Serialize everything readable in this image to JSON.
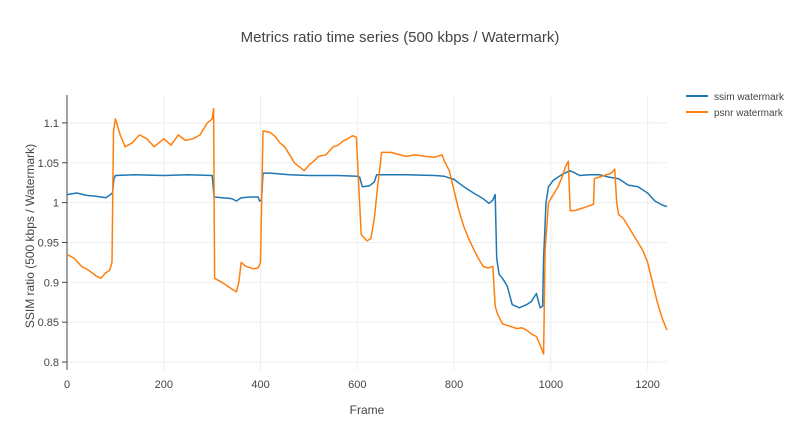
{
  "chart_data": {
    "type": "line",
    "title": "Metrics ratio time series (500 kbps / Watermark)",
    "xlabel": "Frame",
    "ylabel": "SSIM ratio (500 kbps / Watermark)",
    "xlim": [
      0,
      1240
    ],
    "ylim": [
      0.79,
      1.135
    ],
    "x_ticks": [
      0,
      200,
      400,
      600,
      800,
      1000,
      1200
    ],
    "y_ticks": [
      0.8,
      0.85,
      0.9,
      0.95,
      1,
      1.05,
      1.1
    ],
    "y_tick_labels": [
      "0.8",
      "0.85",
      "0.9",
      "0.95",
      "1",
      "1.05",
      "1.1"
    ],
    "grid": true,
    "legend_position": "top-right",
    "series": [
      {
        "name": "ssim watermark",
        "color": "#1f77b4",
        "points": [
          [
            0,
            1.01
          ],
          [
            20,
            1.012
          ],
          [
            40,
            1.009
          ],
          [
            60,
            1.008
          ],
          [
            80,
            1.006
          ],
          [
            90,
            1.01
          ],
          [
            94,
            1.012
          ],
          [
            97,
            1.03
          ],
          [
            100,
            1.034
          ],
          [
            140,
            1.035
          ],
          [
            200,
            1.034
          ],
          [
            250,
            1.035
          ],
          [
            300,
            1.034
          ],
          [
            304,
            1.007
          ],
          [
            340,
            1.005
          ],
          [
            350,
            1.002
          ],
          [
            360,
            1.006
          ],
          [
            380,
            1.007
          ],
          [
            395,
            1.007
          ],
          [
            398,
            1.002
          ],
          [
            402,
            1.003
          ],
          [
            405,
            1.037
          ],
          [
            420,
            1.037
          ],
          [
            460,
            1.035
          ],
          [
            500,
            1.034
          ],
          [
            560,
            1.034
          ],
          [
            600,
            1.033
          ],
          [
            605,
            1.032
          ],
          [
            610,
            1.02
          ],
          [
            625,
            1.021
          ],
          [
            635,
            1.026
          ],
          [
            640,
            1.035
          ],
          [
            700,
            1.035
          ],
          [
            760,
            1.034
          ],
          [
            780,
            1.033
          ],
          [
            800,
            1.029
          ],
          [
            820,
            1.02
          ],
          [
            840,
            1.012
          ],
          [
            860,
            1.005
          ],
          [
            872,
            0.999
          ],
          [
            880,
            1.003
          ],
          [
            885,
            1.01
          ],
          [
            888,
            0.93
          ],
          [
            893,
            0.91
          ],
          [
            900,
            0.905
          ],
          [
            910,
            0.895
          ],
          [
            920,
            0.872
          ],
          [
            935,
            0.868
          ],
          [
            950,
            0.872
          ],
          [
            960,
            0.876
          ],
          [
            970,
            0.886
          ],
          [
            978,
            0.868
          ],
          [
            983,
            0.87
          ],
          [
            985,
            0.93
          ],
          [
            990,
            1.0
          ],
          [
            995,
            1.02
          ],
          [
            1005,
            1.028
          ],
          [
            1015,
            1.032
          ],
          [
            1025,
            1.036
          ],
          [
            1040,
            1.04
          ],
          [
            1060,
            1.034
          ],
          [
            1080,
            1.035
          ],
          [
            1100,
            1.035
          ],
          [
            1120,
            1.032
          ],
          [
            1140,
            1.03
          ],
          [
            1160,
            1.022
          ],
          [
            1180,
            1.02
          ],
          [
            1200,
            1.012
          ],
          [
            1215,
            1.002
          ],
          [
            1230,
            0.997
          ],
          [
            1240,
            0.995
          ]
        ]
      },
      {
        "name": "psnr watermark",
        "color": "#ff7f0e",
        "points": [
          [
            0,
            0.935
          ],
          [
            15,
            0.93
          ],
          [
            30,
            0.92
          ],
          [
            45,
            0.915
          ],
          [
            60,
            0.908
          ],
          [
            70,
            0.905
          ],
          [
            80,
            0.912
          ],
          [
            88,
            0.915
          ],
          [
            93,
            0.925
          ],
          [
            96,
            1.09
          ],
          [
            100,
            1.105
          ],
          [
            110,
            1.085
          ],
          [
            120,
            1.07
          ],
          [
            135,
            1.075
          ],
          [
            150,
            1.085
          ],
          [
            165,
            1.08
          ],
          [
            180,
            1.07
          ],
          [
            200,
            1.08
          ],
          [
            215,
            1.072
          ],
          [
            230,
            1.085
          ],
          [
            245,
            1.078
          ],
          [
            260,
            1.08
          ],
          [
            275,
            1.085
          ],
          [
            290,
            1.1
          ],
          [
            300,
            1.105
          ],
          [
            303,
            1.118
          ],
          [
            305,
            0.905
          ],
          [
            320,
            0.9
          ],
          [
            340,
            0.892
          ],
          [
            350,
            0.888
          ],
          [
            355,
            0.9
          ],
          [
            360,
            0.925
          ],
          [
            370,
            0.92
          ],
          [
            385,
            0.917
          ],
          [
            395,
            0.918
          ],
          [
            400,
            0.925
          ],
          [
            405,
            1.09
          ],
          [
            420,
            1.088
          ],
          [
            430,
            1.083
          ],
          [
            440,
            1.075
          ],
          [
            450,
            1.07
          ],
          [
            460,
            1.06
          ],
          [
            470,
            1.05
          ],
          [
            480,
            1.045
          ],
          [
            490,
            1.04
          ],
          [
            500,
            1.047
          ],
          [
            510,
            1.052
          ],
          [
            520,
            1.058
          ],
          [
            535,
            1.06
          ],
          [
            550,
            1.07
          ],
          [
            560,
            1.072
          ],
          [
            570,
            1.077
          ],
          [
            580,
            1.08
          ],
          [
            590,
            1.084
          ],
          [
            598,
            1.082
          ],
          [
            603,
            1.02
          ],
          [
            608,
            0.96
          ],
          [
            620,
            0.952
          ],
          [
            628,
            0.955
          ],
          [
            635,
            0.98
          ],
          [
            642,
            1.02
          ],
          [
            648,
            1.05
          ],
          [
            650,
            1.063
          ],
          [
            670,
            1.063
          ],
          [
            700,
            1.058
          ],
          [
            720,
            1.06
          ],
          [
            740,
            1.058
          ],
          [
            760,
            1.057
          ],
          [
            775,
            1.06
          ],
          [
            780,
            1.052
          ],
          [
            790,
            1.04
          ],
          [
            800,
            1.015
          ],
          [
            810,
            0.99
          ],
          [
            820,
            0.97
          ],
          [
            830,
            0.955
          ],
          [
            840,
            0.942
          ],
          [
            850,
            0.93
          ],
          [
            860,
            0.92
          ],
          [
            870,
            0.918
          ],
          [
            880,
            0.92
          ],
          [
            885,
            0.87
          ],
          [
            890,
            0.86
          ],
          [
            900,
            0.848
          ],
          [
            915,
            0.845
          ],
          [
            930,
            0.842
          ],
          [
            940,
            0.843
          ],
          [
            950,
            0.84
          ],
          [
            960,
            0.835
          ],
          [
            970,
            0.832
          ],
          [
            980,
            0.818
          ],
          [
            985,
            0.81
          ],
          [
            988,
            0.94
          ],
          [
            995,
            1.0
          ],
          [
            1005,
            1.01
          ],
          [
            1015,
            1.02
          ],
          [
            1025,
            1.035
          ],
          [
            1030,
            1.045
          ],
          [
            1036,
            1.052
          ],
          [
            1040,
            0.99
          ],
          [
            1050,
            0.99
          ],
          [
            1060,
            0.992
          ],
          [
            1075,
            0.995
          ],
          [
            1088,
            0.998
          ],
          [
            1090,
            1.03
          ],
          [
            1100,
            1.032
          ],
          [
            1115,
            1.035
          ],
          [
            1125,
            1.037
          ],
          [
            1132,
            1.042
          ],
          [
            1136,
            1.0
          ],
          [
            1140,
            0.985
          ],
          [
            1150,
            0.98
          ],
          [
            1160,
            0.97
          ],
          [
            1170,
            0.96
          ],
          [
            1180,
            0.95
          ],
          [
            1190,
            0.94
          ],
          [
            1200,
            0.925
          ],
          [
            1210,
            0.9
          ],
          [
            1220,
            0.875
          ],
          [
            1230,
            0.855
          ],
          [
            1240,
            0.84
          ]
        ]
      }
    ]
  }
}
